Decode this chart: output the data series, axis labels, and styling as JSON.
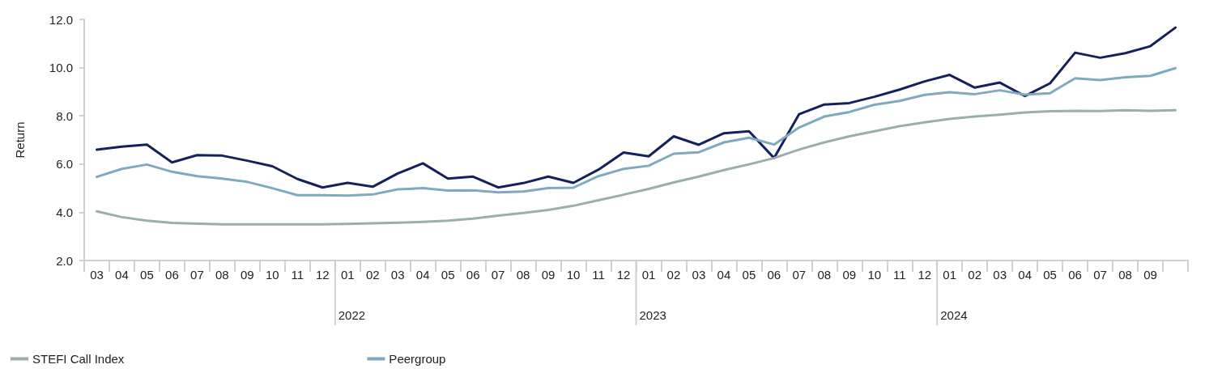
{
  "chart_data": {
    "type": "line",
    "ylabel": "Return",
    "categories": [
      "03",
      "04",
      "05",
      "06",
      "07",
      "08",
      "09",
      "10",
      "11",
      "12",
      "01",
      "02",
      "03",
      "04",
      "05",
      "06",
      "07",
      "08",
      "09",
      "10",
      "11",
      "12",
      "01",
      "02",
      "03",
      "04",
      "05",
      "06",
      "07",
      "08",
      "09",
      "10",
      "11",
      "12",
      "01",
      "02",
      "03",
      "04",
      "05",
      "06",
      "07",
      "08",
      "09",
      null
    ],
    "ylim": [
      2,
      12
    ],
    "yticks": [
      {
        "value": 2,
        "label": "2.0"
      },
      {
        "value": 4,
        "label": "4.0"
      },
      {
        "value": 6,
        "label": "6.0"
      },
      {
        "value": 8,
        "label": "8.0"
      },
      {
        "value": 10,
        "label": "10.0"
      },
      {
        "value": 12,
        "label": "12.0"
      }
    ],
    "grid": false,
    "legend": "bottom",
    "marker": "none",
    "line_style": "solid",
    "annotations": [
      "2022",
      "2023",
      "2024"
    ],
    "series": [
      {
        "color": "#15215e",
        "values": [
          6.6,
          6.72,
          6.81,
          6.07,
          6.37,
          6.35,
          6.14,
          5.91,
          5.38,
          5.03,
          5.22,
          5.06,
          5.61,
          6.03,
          5.4,
          5.48,
          5.03,
          5.21,
          5.48,
          5.22,
          5.77,
          6.48,
          6.32,
          7.15,
          6.8,
          7.28,
          7.36,
          6.25,
          8.07,
          8.47,
          8.53,
          8.79,
          9.09,
          9.43,
          9.7,
          9.17,
          9.38,
          8.82,
          9.35,
          10.62,
          10.41,
          10.6,
          10.89,
          11.66
        ]
      },
      {
        "name": "STEFI Call Index",
        "color": "#9aaeab",
        "values": [
          4.04,
          3.8,
          3.65,
          3.56,
          3.53,
          3.5,
          3.5,
          3.5,
          3.5,
          3.5,
          3.52,
          3.54,
          3.57,
          3.6,
          3.65,
          3.74,
          3.86,
          3.97,
          4.1,
          4.27,
          4.5,
          4.73,
          4.97,
          5.24,
          5.48,
          5.75,
          5.99,
          6.25,
          6.6,
          6.9,
          7.15,
          7.36,
          7.57,
          7.73,
          7.87,
          7.97,
          8.05,
          8.14,
          8.19,
          8.21,
          8.2,
          8.23,
          8.21,
          8.23
        ]
      },
      {
        "name": "Peergroup",
        "color": "#7fa9bf",
        "values": [
          5.47,
          5.8,
          5.98,
          5.68,
          5.5,
          5.4,
          5.26,
          5.0,
          4.71,
          4.71,
          4.69,
          4.74,
          4.95,
          5.0,
          4.9,
          4.91,
          4.83,
          4.86,
          5.0,
          5.02,
          5.5,
          5.8,
          5.93,
          6.43,
          6.49,
          6.9,
          7.09,
          6.81,
          7.52,
          7.97,
          8.16,
          8.46,
          8.62,
          8.87,
          8.98,
          8.9,
          9.06,
          8.88,
          8.94,
          9.56,
          9.48,
          9.6,
          9.66,
          9.98
        ]
      }
    ]
  }
}
